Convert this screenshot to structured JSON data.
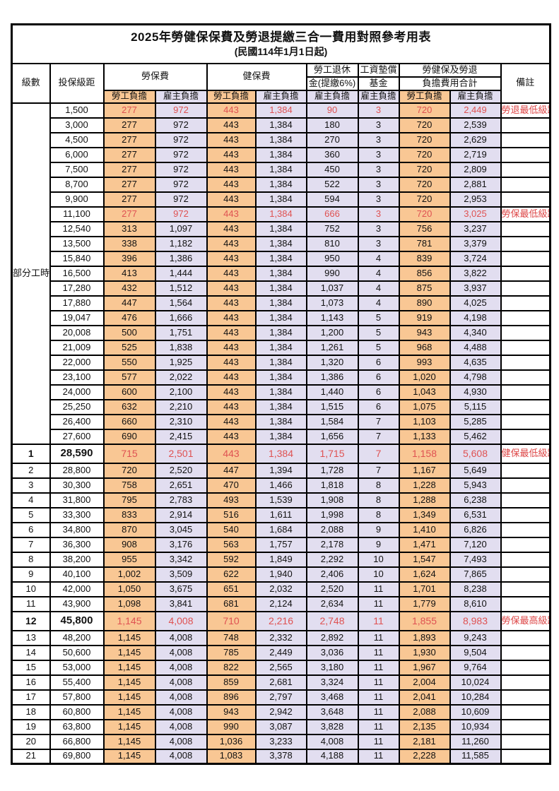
{
  "title": "2025年勞健保保費及勞退提繳三合一費用對照參考用表",
  "subtitle": "(民國114年1月1日起)",
  "colors": {
    "employee_cell_bg": "#F9C794",
    "employer_cell_bg": "#E2DEF0",
    "highlight_text": "#DF5252",
    "note_text": "#DD4747",
    "border": "#000000"
  },
  "header": {
    "level": "級數",
    "salary": "投保級距",
    "labor_fee": "勞保費",
    "health_fee": "健保費",
    "pension_line1": "勞工退休",
    "pension_line2": "金(提繳6%)",
    "fund_line1": "工資墊償",
    "fund_line2": "基金",
    "total_line1": "勞健保及勞退",
    "total_line2": "負擔費用合計",
    "note": "備註",
    "employee": "勞工負擔",
    "employer": "雇主負擔"
  },
  "column_types": [
    "emp",
    "er",
    "emp",
    "er",
    "er",
    "er",
    "emp",
    "er"
  ],
  "rows": [
    {
      "level": "部分工時",
      "level_rowspan": 23,
      "salary": "1,500",
      "values": [
        "277",
        "972",
        "443",
        "1,384",
        "90",
        "3",
        "720",
        "2,449"
      ],
      "note": "勞退最低級距",
      "red": true
    },
    {
      "salary": "3,000",
      "values": [
        "277",
        "972",
        "443",
        "1,384",
        "180",
        "3",
        "720",
        "2,539"
      ]
    },
    {
      "salary": "4,500",
      "values": [
        "277",
        "972",
        "443",
        "1,384",
        "270",
        "3",
        "720",
        "2,629"
      ]
    },
    {
      "salary": "6,000",
      "values": [
        "277",
        "972",
        "443",
        "1,384",
        "360",
        "3",
        "720",
        "2,719"
      ]
    },
    {
      "salary": "7,500",
      "values": [
        "277",
        "972",
        "443",
        "1,384",
        "450",
        "3",
        "720",
        "2,809"
      ]
    },
    {
      "salary": "8,700",
      "values": [
        "277",
        "972",
        "443",
        "1,384",
        "522",
        "3",
        "720",
        "2,881"
      ]
    },
    {
      "salary": "9,900",
      "values": [
        "277",
        "972",
        "443",
        "1,384",
        "594",
        "3",
        "720",
        "2,953"
      ]
    },
    {
      "salary": "11,100",
      "values": [
        "277",
        "972",
        "443",
        "1,384",
        "666",
        "3",
        "720",
        "3,025"
      ],
      "note": "勞保最低級距",
      "red": true
    },
    {
      "salary": "12,540",
      "values": [
        "313",
        "1,097",
        "443",
        "1,384",
        "752",
        "3",
        "756",
        "3,237"
      ]
    },
    {
      "salary": "13,500",
      "values": [
        "338",
        "1,182",
        "443",
        "1,384",
        "810",
        "3",
        "781",
        "3,379"
      ]
    },
    {
      "salary": "15,840",
      "values": [
        "396",
        "1,386",
        "443",
        "1,384",
        "950",
        "4",
        "839",
        "3,724"
      ]
    },
    {
      "salary": "16,500",
      "values": [
        "413",
        "1,444",
        "443",
        "1,384",
        "990",
        "4",
        "856",
        "3,822"
      ]
    },
    {
      "salary": "17,280",
      "values": [
        "432",
        "1,512",
        "443",
        "1,384",
        "1,037",
        "4",
        "875",
        "3,937"
      ]
    },
    {
      "salary": "17,880",
      "values": [
        "447",
        "1,564",
        "443",
        "1,384",
        "1,073",
        "4",
        "890",
        "4,025"
      ]
    },
    {
      "salary": "19,047",
      "values": [
        "476",
        "1,666",
        "443",
        "1,384",
        "1,143",
        "5",
        "919",
        "4,198"
      ]
    },
    {
      "salary": "20,008",
      "values": [
        "500",
        "1,751",
        "443",
        "1,384",
        "1,200",
        "5",
        "943",
        "4,340"
      ]
    },
    {
      "salary": "21,009",
      "values": [
        "525",
        "1,838",
        "443",
        "1,384",
        "1,261",
        "5",
        "968",
        "4,488"
      ]
    },
    {
      "salary": "22,000",
      "values": [
        "550",
        "1,925",
        "443",
        "1,384",
        "1,320",
        "6",
        "993",
        "4,635"
      ]
    },
    {
      "salary": "23,100",
      "values": [
        "577",
        "2,022",
        "443",
        "1,384",
        "1,386",
        "6",
        "1,020",
        "4,798"
      ]
    },
    {
      "salary": "24,000",
      "values": [
        "600",
        "2,100",
        "443",
        "1,384",
        "1,440",
        "6",
        "1,043",
        "4,930"
      ]
    },
    {
      "salary": "25,250",
      "values": [
        "632",
        "2,210",
        "443",
        "1,384",
        "1,515",
        "6",
        "1,075",
        "5,115"
      ]
    },
    {
      "salary": "26,400",
      "values": [
        "660",
        "2,310",
        "443",
        "1,384",
        "1,584",
        "7",
        "1,103",
        "5,285"
      ]
    },
    {
      "salary": "27,600",
      "values": [
        "690",
        "2,415",
        "443",
        "1,384",
        "1,656",
        "7",
        "1,133",
        "5,462"
      ]
    },
    {
      "level": "1",
      "salary": "28,590",
      "values": [
        "715",
        "2,501",
        "443",
        "1,384",
        "1,715",
        "7",
        "1,158",
        "5,608"
      ],
      "note": "健保最低級距",
      "red": true,
      "tall": true
    },
    {
      "level": "2",
      "salary": "28,800",
      "values": [
        "720",
        "2,520",
        "447",
        "1,394",
        "1,728",
        "7",
        "1,167",
        "5,649"
      ]
    },
    {
      "level": "3",
      "salary": "30,300",
      "values": [
        "758",
        "2,651",
        "470",
        "1,466",
        "1,818",
        "8",
        "1,228",
        "5,943"
      ]
    },
    {
      "level": "4",
      "salary": "31,800",
      "values": [
        "795",
        "2,783",
        "493",
        "1,539",
        "1,908",
        "8",
        "1,288",
        "6,238"
      ]
    },
    {
      "level": "5",
      "salary": "33,300",
      "values": [
        "833",
        "2,914",
        "516",
        "1,611",
        "1,998",
        "8",
        "1,349",
        "6,531"
      ]
    },
    {
      "level": "6",
      "salary": "34,800",
      "values": [
        "870",
        "3,045",
        "540",
        "1,684",
        "2,088",
        "9",
        "1,410",
        "6,826"
      ]
    },
    {
      "level": "7",
      "salary": "36,300",
      "values": [
        "908",
        "3,176",
        "563",
        "1,757",
        "2,178",
        "9",
        "1,471",
        "7,120"
      ]
    },
    {
      "level": "8",
      "salary": "38,200",
      "values": [
        "955",
        "3,342",
        "592",
        "1,849",
        "2,292",
        "10",
        "1,547",
        "7,493"
      ]
    },
    {
      "level": "9",
      "salary": "40,100",
      "values": [
        "1,002",
        "3,509",
        "622",
        "1,940",
        "2,406",
        "10",
        "1,624",
        "7,865"
      ]
    },
    {
      "level": "10",
      "salary": "42,000",
      "values": [
        "1,050",
        "3,675",
        "651",
        "2,032",
        "2,520",
        "11",
        "1,701",
        "8,238"
      ]
    },
    {
      "level": "11",
      "salary": "43,900",
      "values": [
        "1,098",
        "3,841",
        "681",
        "2,124",
        "2,634",
        "11",
        "1,779",
        "8,610"
      ]
    },
    {
      "level": "12",
      "salary": "45,800",
      "values": [
        "1,145",
        "4,008",
        "710",
        "2,216",
        "2,748",
        "11",
        "1,855",
        "8,983"
      ],
      "note": "勞保最高級距",
      "red": true,
      "tall": true
    },
    {
      "level": "13",
      "salary": "48,200",
      "values": [
        "1,145",
        "4,008",
        "748",
        "2,332",
        "2,892",
        "11",
        "1,893",
        "9,243"
      ]
    },
    {
      "level": "14",
      "salary": "50,600",
      "values": [
        "1,145",
        "4,008",
        "785",
        "2,449",
        "3,036",
        "11",
        "1,930",
        "9,504"
      ]
    },
    {
      "level": "15",
      "salary": "53,000",
      "values": [
        "1,145",
        "4,008",
        "822",
        "2,565",
        "3,180",
        "11",
        "1,967",
        "9,764"
      ]
    },
    {
      "level": "16",
      "salary": "55,400",
      "values": [
        "1,145",
        "4,008",
        "859",
        "2,681",
        "3,324",
        "11",
        "2,004",
        "10,024"
      ]
    },
    {
      "level": "17",
      "salary": "57,800",
      "values": [
        "1,145",
        "4,008",
        "896",
        "2,797",
        "3,468",
        "11",
        "2,041",
        "10,284"
      ]
    },
    {
      "level": "18",
      "salary": "60,800",
      "values": [
        "1,145",
        "4,008",
        "943",
        "2,942",
        "3,648",
        "11",
        "2,088",
        "10,609"
      ]
    },
    {
      "level": "19",
      "salary": "63,800",
      "values": [
        "1,145",
        "4,008",
        "990",
        "3,087",
        "3,828",
        "11",
        "2,135",
        "10,934"
      ]
    },
    {
      "level": "20",
      "salary": "66,800",
      "values": [
        "1,145",
        "4,008",
        "1,036",
        "3,233",
        "4,008",
        "11",
        "2,181",
        "11,260"
      ]
    },
    {
      "level": "21",
      "salary": "69,800",
      "values": [
        "1,145",
        "4,008",
        "1,083",
        "3,378",
        "4,188",
        "11",
        "2,228",
        "11,585"
      ]
    }
  ]
}
